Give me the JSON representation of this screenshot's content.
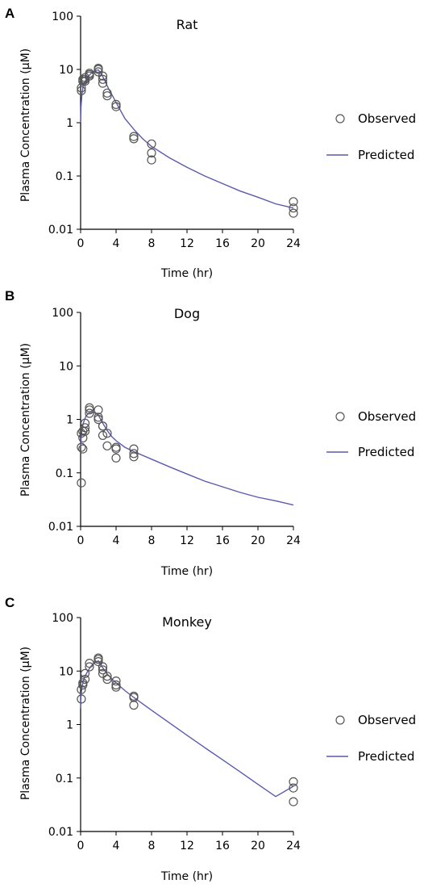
{
  "chart_data": [
    {
      "type": "scatter",
      "letter": "A",
      "title": "Rat",
      "xlabel": "Time (hr)",
      "ylabel": "Plasma Concentration (µM)",
      "xlim": [
        0,
        24
      ],
      "ylim": [
        0.01,
        100
      ],
      "yscale": "log",
      "xticks": [
        0,
        4,
        8,
        12,
        16,
        20,
        24
      ],
      "yticks": [
        0.01,
        0.1,
        1,
        10,
        100
      ],
      "ytick_labels": [
        "0.01",
        "0.1",
        "1",
        "10",
        "100"
      ],
      "legend": {
        "observed": "Observed",
        "predicted": "Predicted",
        "position": "right"
      },
      "observed": {
        "name": "Observed",
        "x": [
          0.08,
          0.08,
          0.25,
          0.25,
          0.5,
          0.5,
          0.5,
          1,
          1,
          1,
          2,
          2,
          2,
          2.5,
          2.5,
          2.5,
          3,
          3,
          4,
          4,
          6,
          6,
          8,
          8,
          8,
          24,
          24,
          24
        ],
        "y": [
          4.0,
          4.5,
          6.0,
          6.5,
          6.0,
          6.5,
          7.0,
          7.5,
          8.0,
          8.5,
          9.0,
          10.0,
          10.5,
          5.5,
          6.5,
          7.5,
          3.2,
          3.6,
          2.0,
          2.2,
          0.5,
          0.55,
          0.2,
          0.27,
          0.4,
          0.02,
          0.025,
          0.033
        ]
      },
      "predicted": {
        "name": "Predicted",
        "x": [
          0,
          0.05,
          0.15,
          0.3,
          0.5,
          0.8,
          1.2,
          1.6,
          2,
          2.4,
          2.8,
          3.2,
          3.6,
          4,
          5,
          6,
          7,
          8,
          10,
          12,
          14,
          16,
          18,
          20,
          22,
          24
        ],
        "y": [
          1.0,
          2.0,
          3.5,
          5.0,
          6.0,
          7.2,
          8.5,
          9.5,
          9.8,
          8.0,
          5.8,
          4.2,
          3.2,
          2.4,
          1.2,
          0.75,
          0.5,
          0.36,
          0.22,
          0.145,
          0.1,
          0.072,
          0.052,
          0.04,
          0.03,
          0.025
        ]
      },
      "colors": {
        "line": "#5a5ab0",
        "marker": "#555555"
      }
    },
    {
      "type": "scatter",
      "letter": "B",
      "title": "Dog",
      "xlabel": "Time (hr)",
      "ylabel": "Plasma Concentration (µM)",
      "xlim": [
        0,
        24
      ],
      "ylim": [
        0.01,
        100
      ],
      "yscale": "log",
      "xticks": [
        0,
        4,
        8,
        12,
        16,
        20,
        24
      ],
      "yticks": [
        0.01,
        0.1,
        1,
        10,
        100
      ],
      "ytick_labels": [
        "0.01",
        "0.1",
        "1",
        "10",
        "100"
      ],
      "legend": {
        "observed": "Observed",
        "predicted": "Predicted",
        "position": "right"
      },
      "observed": {
        "name": "Observed",
        "x": [
          0.08,
          0.08,
          0.08,
          0.25,
          0.25,
          0.25,
          0.5,
          0.5,
          0.5,
          1,
          1,
          1,
          2,
          2,
          2,
          2.5,
          2.5,
          2.5,
          3,
          3,
          4,
          4,
          4,
          6,
          6,
          6
        ],
        "y": [
          0.065,
          0.3,
          0.55,
          0.28,
          0.45,
          0.6,
          0.7,
          0.85,
          0.6,
          1.3,
          1.5,
          1.65,
          1.0,
          1.1,
          1.5,
          0.5,
          0.75,
          0.75,
          0.32,
          0.55,
          0.19,
          0.28,
          0.3,
          0.2,
          0.23,
          0.28
        ]
      },
      "predicted": {
        "name": "Predicted",
        "x": [
          0,
          0.1,
          0.3,
          0.6,
          1,
          1.5,
          2,
          2.5,
          3,
          3.5,
          4,
          5,
          6,
          8,
          10,
          12,
          14,
          16,
          18,
          20,
          22,
          24
        ],
        "y": [
          0.3,
          0.55,
          0.85,
          1.15,
          1.35,
          1.35,
          1.2,
          0.85,
          0.62,
          0.48,
          0.4,
          0.3,
          0.25,
          0.18,
          0.13,
          0.095,
          0.07,
          0.055,
          0.043,
          0.035,
          0.03,
          0.025
        ]
      },
      "colors": {
        "line": "#5a5ab0",
        "marker": "#555555"
      }
    },
    {
      "type": "scatter",
      "letter": "C",
      "title": "Monkey",
      "xlabel": "Time (hr)",
      "ylabel": "Plasma Concentration (µM)",
      "xlim": [
        0,
        24
      ],
      "ylim": [
        0.01,
        100
      ],
      "yscale": "log",
      "xticks": [
        0,
        4,
        8,
        12,
        16,
        20,
        24
      ],
      "yticks": [
        0.01,
        0.1,
        1,
        10,
        100
      ],
      "ytick_labels": [
        "0.01",
        "0.1",
        "1",
        "10",
        "100"
      ],
      "legend": {
        "observed": "Observed",
        "predicted": "Predicted",
        "position": "right"
      },
      "observed": {
        "name": "Observed",
        "x": [
          0.08,
          0.08,
          0.25,
          0.25,
          0.5,
          0.5,
          1,
          1,
          2,
          2,
          2,
          2.5,
          2.5,
          2.5,
          3,
          3,
          4,
          4,
          4,
          6,
          6,
          6,
          24,
          24,
          24
        ],
        "y": [
          3.0,
          4.5,
          5.5,
          6.0,
          7.0,
          9.0,
          12.0,
          14.0,
          15.0,
          16.5,
          17.5,
          9.0,
          10.5,
          12.0,
          7.0,
          8.0,
          5.0,
          5.5,
          6.5,
          2.3,
          3.2,
          3.4,
          0.036,
          0.065,
          0.085
        ]
      },
      "predicted": {
        "name": "Predicted",
        "x": [
          0,
          0.05,
          0.15,
          0.3,
          0.5,
          0.8,
          1.2,
          1.6,
          2,
          2.5,
          3,
          3.5,
          4,
          5,
          6,
          8,
          10,
          12,
          14,
          16,
          18,
          20,
          22,
          24
        ],
        "y": [
          2.0,
          3.5,
          5.0,
          6.5,
          8.0,
          10.0,
          12.5,
          14.5,
          15.5,
          11.5,
          8.8,
          7.2,
          6.0,
          4.3,
          3.2,
          1.85,
          1.08,
          0.63,
          0.37,
          0.22,
          0.13,
          0.076,
          0.045,
          0.07
        ]
      },
      "colors": {
        "line": "#5a5ab0",
        "marker": "#555555"
      }
    }
  ]
}
